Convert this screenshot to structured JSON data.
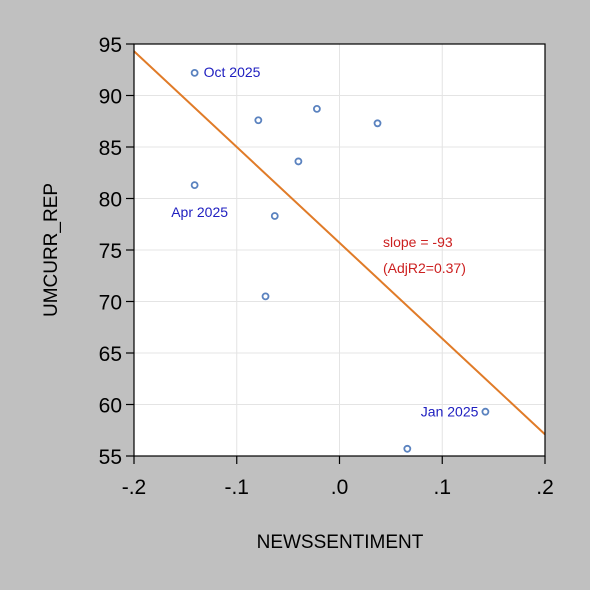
{
  "chart_data": {
    "type": "scatter",
    "xlabel": "NEWSSENTIMENT",
    "ylabel": "UMCURR_REP",
    "xlim": [
      -0.2,
      0.2
    ],
    "ylim": [
      55,
      95
    ],
    "xticks": [
      {
        "value": -0.2,
        "label": "-.2"
      },
      {
        "value": -0.1,
        "label": "-.1"
      },
      {
        "value": 0.0,
        "label": ".0"
      },
      {
        "value": 0.1,
        "label": ".1"
      },
      {
        "value": 0.2,
        "label": ".2"
      }
    ],
    "yticks": [
      {
        "value": 55,
        "label": "55"
      },
      {
        "value": 60,
        "label": "60"
      },
      {
        "value": 65,
        "label": "65"
      },
      {
        "value": 70,
        "label": "70"
      },
      {
        "value": 75,
        "label": "75"
      },
      {
        "value": 80,
        "label": "80"
      },
      {
        "value": 85,
        "label": "85"
      },
      {
        "value": 90,
        "label": "90"
      },
      {
        "value": 95,
        "label": "95"
      }
    ],
    "grid": true,
    "points": [
      {
        "x": -0.141,
        "y": 92.2,
        "label": "Oct 2025"
      },
      {
        "x": -0.141,
        "y": 81.3,
        "label": "Apr 2025"
      },
      {
        "x": -0.079,
        "y": 87.6
      },
      {
        "x": -0.022,
        "y": 88.7
      },
      {
        "x": 0.037,
        "y": 87.3
      },
      {
        "x": -0.04,
        "y": 83.6
      },
      {
        "x": -0.063,
        "y": 78.3
      },
      {
        "x": -0.072,
        "y": 70.5
      },
      {
        "x": 0.142,
        "y": 59.3,
        "label": "Jan 2025"
      },
      {
        "x": 0.066,
        "y": 55.7
      }
    ],
    "fit_line": {
      "x": [
        -0.2,
        0.2
      ],
      "y": [
        94.3,
        57.1
      ]
    },
    "annotation": [
      "slope = -93",
      "(AdjR2=0.37)"
    ],
    "colors": {
      "background": "#c0c0c0",
      "plot_area": "#ffffff",
      "grid": "#e4e4e4",
      "points": "#5a82bf",
      "point_labels": "#2020c0",
      "fit_line": "#e07b28",
      "annotation": "#cc2020"
    }
  }
}
